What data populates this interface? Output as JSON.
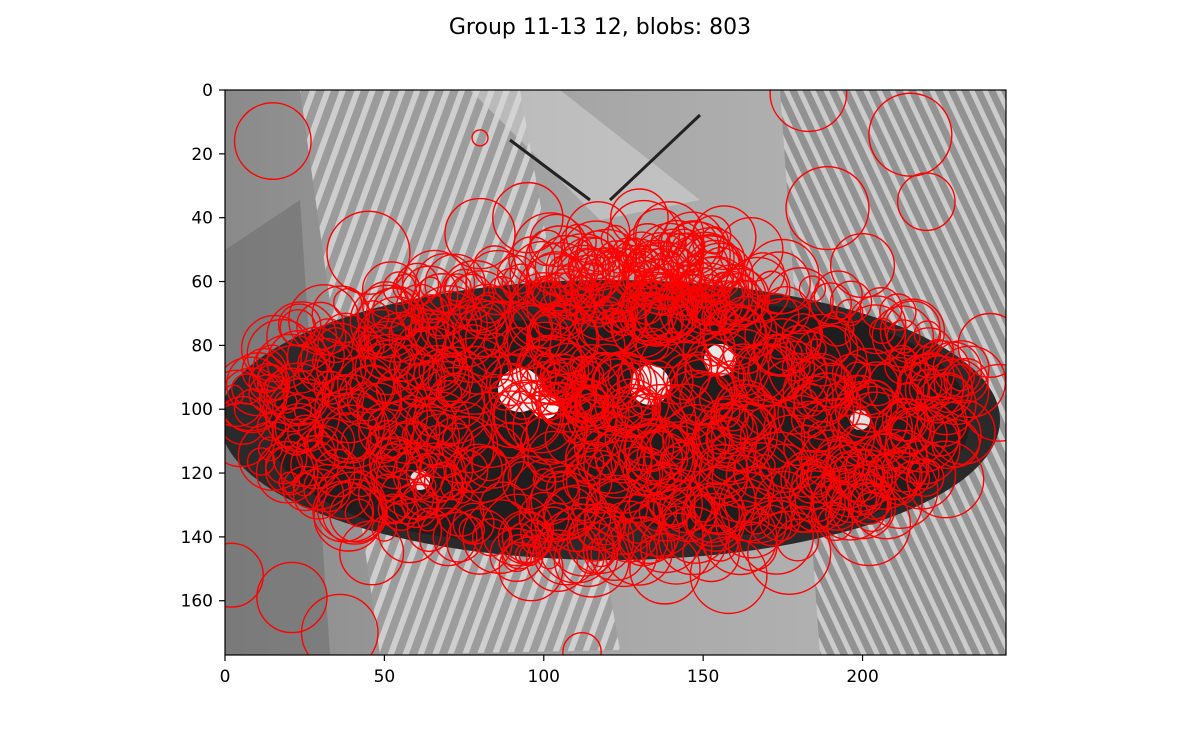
{
  "chart_data": {
    "type": "scatter",
    "title": "Group 11-13 12, blobs: 803",
    "xlabel": "",
    "ylabel": "",
    "xlim": [
      0,
      245
    ],
    "ylim": [
      0,
      177
    ],
    "y_inverted": true,
    "xticks": [
      0,
      50,
      100,
      150,
      200
    ],
    "yticks": [
      0,
      20,
      40,
      60,
      80,
      100,
      120,
      140,
      160
    ],
    "grid": false,
    "background": "grayscale photograph of a black butterfly with white spots resting on a striped leaf",
    "series": [
      {
        "marker": "circle outline",
        "color": "#ff0000",
        "count": 803,
        "points": [
          {
            "x": 15,
            "y": 16,
            "r": 12
          },
          {
            "x": 80,
            "y": 15,
            "r": 2.5
          },
          {
            "x": 183,
            "y": 1,
            "r": 12
          },
          {
            "x": 215,
            "y": 14,
            "r": 13
          },
          {
            "x": 220,
            "y": 35,
            "r": 9
          },
          {
            "x": 189,
            "y": 37,
            "r": 13
          },
          {
            "x": 45,
            "y": 51,
            "r": 13
          },
          {
            "x": 31,
            "y": 72,
            "r": 11
          },
          {
            "x": 130,
            "y": 40,
            "r": 9
          },
          {
            "x": 117,
            "y": 45,
            "r": 10
          },
          {
            "x": 95,
            "y": 40,
            "r": 11
          },
          {
            "x": 80,
            "y": 45,
            "r": 11
          },
          {
            "x": 165,
            "y": 50,
            "r": 10
          },
          {
            "x": 200,
            "y": 55,
            "r": 10
          },
          {
            "x": 5,
            "y": 108,
            "r": 10
          },
          {
            "x": 2,
            "y": 152,
            "r": 10
          },
          {
            "x": 21,
            "y": 159,
            "r": 11
          },
          {
            "x": 36,
            "y": 170,
            "r": 12
          },
          {
            "x": 112,
            "y": 176,
            "r": 6
          },
          {
            "x": 240,
            "y": 80,
            "r": 10
          },
          {
            "x": 243,
            "y": 98,
            "r": 12
          },
          {
            "x": 226,
            "y": 122,
            "r": 12
          },
          {
            "x": 202,
            "y": 136,
            "r": 13
          },
          {
            "x": 177,
            "y": 145,
            "r": 13
          },
          {
            "x": 158,
            "y": 152,
            "r": 12
          },
          {
            "x": 138,
            "y": 150,
            "r": 11
          },
          {
            "x": 96,
            "y": 150,
            "r": 10
          },
          {
            "x": 70,
            "y": 140,
            "r": 9
          },
          {
            "x": 46,
            "y": 145,
            "r": 10
          }
        ]
      }
    ]
  }
}
